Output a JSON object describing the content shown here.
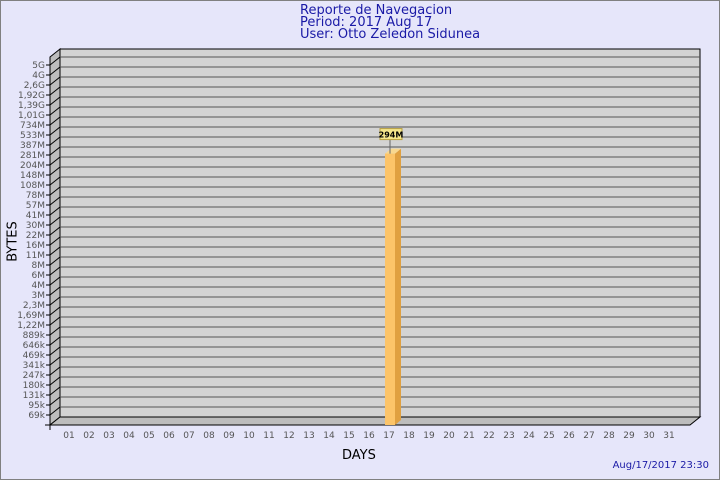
{
  "header": {
    "title": "Reporte de Navegacion",
    "period": "Period: 2017 Aug 17",
    "user": "User: Otto Zeledon Sidunea"
  },
  "footer": {
    "timestamp": "Aug/17/2017 23:30"
  },
  "chart_data": {
    "type": "bar",
    "title": "Reporte de Navegacion",
    "xlabel": "DAYS",
    "ylabel": "BYTES",
    "y_scale": "log",
    "grid": true,
    "y_ticks": [
      "5G",
      "4G",
      "2,6G",
      "1,92G",
      "1,39G",
      "1,01G",
      "734M",
      "533M",
      "387M",
      "281M",
      "204M",
      "148M",
      "108M",
      "78M",
      "57M",
      "41M",
      "30M",
      "22M",
      "16M",
      "11M",
      "8M",
      "6M",
      "4M",
      "3M",
      "2,3M",
      "1,69M",
      "1,22M",
      "889k",
      "646k",
      "469k",
      "341k",
      "247k",
      "180k",
      "131k",
      "95k",
      "69k"
    ],
    "categories": [
      "01",
      "02",
      "03",
      "04",
      "05",
      "06",
      "07",
      "08",
      "09",
      "10",
      "11",
      "12",
      "13",
      "14",
      "15",
      "16",
      "17",
      "18",
      "19",
      "20",
      "21",
      "22",
      "23",
      "24",
      "25",
      "26",
      "27",
      "28",
      "29",
      "30",
      "31"
    ],
    "series": [
      {
        "values": [
          null,
          null,
          null,
          null,
          null,
          null,
          null,
          null,
          null,
          null,
          null,
          null,
          null,
          null,
          null,
          null,
          294000000,
          null,
          null,
          null,
          null,
          null,
          null,
          null,
          null,
          null,
          null,
          null,
          null,
          null,
          null
        ]
      }
    ],
    "data_labels": {
      "17": "294M"
    },
    "colors": {
      "bar_front": "#fcc469",
      "bar_side": "#e0a040",
      "wall": "#d3d3d3",
      "side_wall": "#bdbdbd",
      "label_bg": "#f5e68c"
    }
  }
}
